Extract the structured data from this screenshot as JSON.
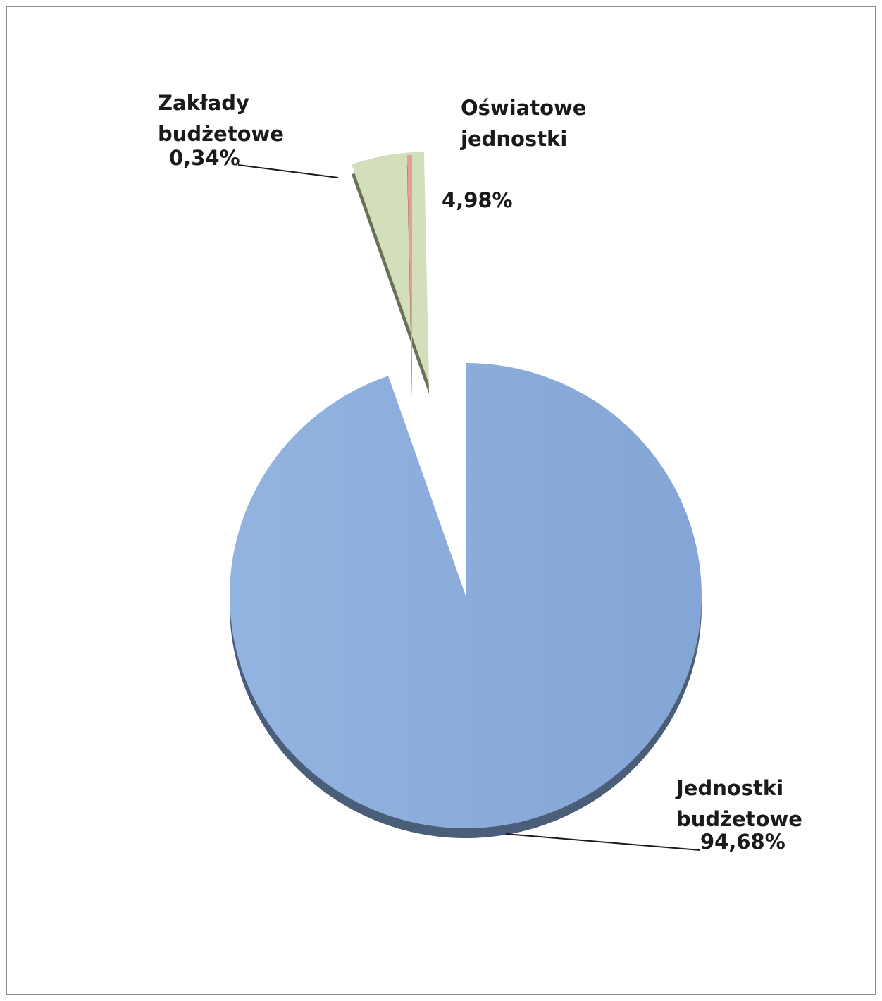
{
  "chart_data": {
    "type": "pie",
    "slices": [
      {
        "label_lines": [
          "Jednostki",
          "budżetowe"
        ],
        "value": 94.68,
        "value_label": "94,68%",
        "color": "#8daedb",
        "side_color": "#4a5e7a"
      },
      {
        "label_lines": [
          "Oświatowe",
          "jednostki"
        ],
        "value": 4.98,
        "value_label": "4,98%",
        "color": "#d3dfba",
        "side_color": "#6b7158"
      },
      {
        "label_lines": [
          "Zakłady",
          "budżetowe"
        ],
        "value": 0.34,
        "value_label": "0,34%",
        "color": "#e49f9c",
        "side_color": "#6e3a38"
      }
    ],
    "exploded": true,
    "style": "3d"
  }
}
